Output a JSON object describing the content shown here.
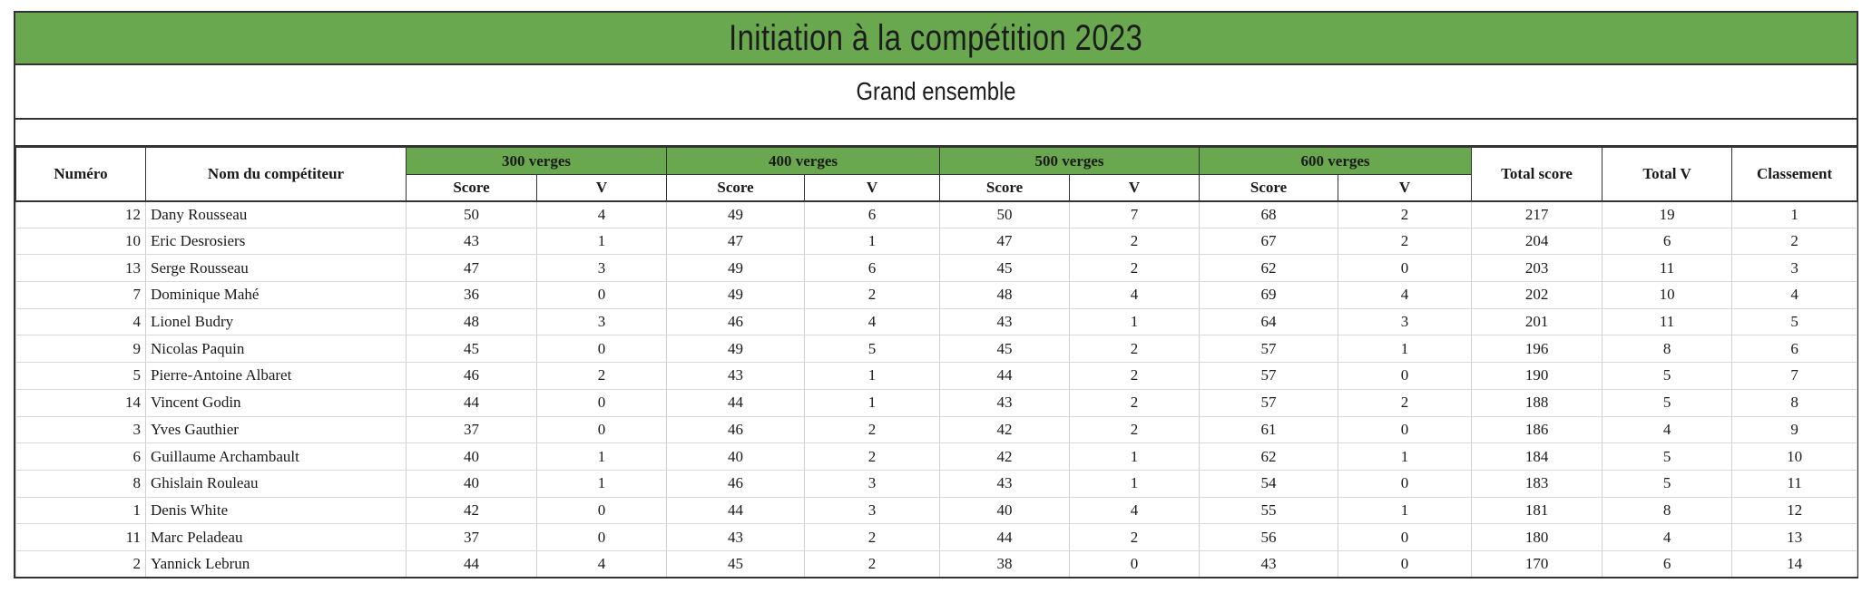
{
  "title": "Initiation à la compétition 2023",
  "subtitle": "Grand ensemble",
  "colors": {
    "header_green": "#6aa84f",
    "border": "#333333"
  },
  "headers": {
    "numero": "Numéro",
    "nom": "Nom du compétiteur",
    "groups": [
      "300 verges",
      "400 verges",
      "500 verges",
      "600 verges"
    ],
    "score": "Score",
    "v": "V",
    "total_score": "Total score",
    "total_v": "Total V",
    "classement": "Classement"
  },
  "rows": [
    {
      "numero": "12",
      "nom": "Dany Rousseau",
      "s300": "50",
      "v300": "4",
      "s400": "49",
      "v400": "6",
      "s500": "50",
      "v500": "7",
      "s600": "68",
      "v600": "2",
      "total_score": "217",
      "total_v": "19",
      "classement": "1"
    },
    {
      "numero": "10",
      "nom": "Eric Desrosiers",
      "s300": "43",
      "v300": "1",
      "s400": "47",
      "v400": "1",
      "s500": "47",
      "v500": "2",
      "s600": "67",
      "v600": "2",
      "total_score": "204",
      "total_v": "6",
      "classement": "2"
    },
    {
      "numero": "13",
      "nom": "Serge Rousseau",
      "s300": "47",
      "v300": "3",
      "s400": "49",
      "v400": "6",
      "s500": "45",
      "v500": "2",
      "s600": "62",
      "v600": "0",
      "total_score": "203",
      "total_v": "11",
      "classement": "3"
    },
    {
      "numero": "7",
      "nom": "Dominique Mahé",
      "s300": "36",
      "v300": "0",
      "s400": "49",
      "v400": "2",
      "s500": "48",
      "v500": "4",
      "s600": "69",
      "v600": "4",
      "total_score": "202",
      "total_v": "10",
      "classement": "4"
    },
    {
      "numero": "4",
      "nom": "Lionel Budry",
      "s300": "48",
      "v300": "3",
      "s400": "46",
      "v400": "4",
      "s500": "43",
      "v500": "1",
      "s600": "64",
      "v600": "3",
      "total_score": "201",
      "total_v": "11",
      "classement": "5"
    },
    {
      "numero": "9",
      "nom": "Nicolas Paquin",
      "s300": "45",
      "v300": "0",
      "s400": "49",
      "v400": "5",
      "s500": "45",
      "v500": "2",
      "s600": "57",
      "v600": "1",
      "total_score": "196",
      "total_v": "8",
      "classement": "6"
    },
    {
      "numero": "5",
      "nom": "Pierre-Antoine Albaret",
      "s300": "46",
      "v300": "2",
      "s400": "43",
      "v400": "1",
      "s500": "44",
      "v500": "2",
      "s600": "57",
      "v600": "0",
      "total_score": "190",
      "total_v": "5",
      "classement": "7"
    },
    {
      "numero": "14",
      "nom": "Vincent Godin",
      "s300": "44",
      "v300": "0",
      "s400": "44",
      "v400": "1",
      "s500": "43",
      "v500": "2",
      "s600": "57",
      "v600": "2",
      "total_score": "188",
      "total_v": "5",
      "classement": "8"
    },
    {
      "numero": "3",
      "nom": "Yves Gauthier",
      "s300": "37",
      "v300": "0",
      "s400": "46",
      "v400": "2",
      "s500": "42",
      "v500": "2",
      "s600": "61",
      "v600": "0",
      "total_score": "186",
      "total_v": "4",
      "classement": "9"
    },
    {
      "numero": "6",
      "nom": "Guillaume Archambault",
      "s300": "40",
      "v300": "1",
      "s400": "40",
      "v400": "2",
      "s500": "42",
      "v500": "1",
      "s600": "62",
      "v600": "1",
      "total_score": "184",
      "total_v": "5",
      "classement": "10"
    },
    {
      "numero": "8",
      "nom": "Ghislain Rouleau",
      "s300": "40",
      "v300": "1",
      "s400": "46",
      "v400": "3",
      "s500": "43",
      "v500": "1",
      "s600": "54",
      "v600": "0",
      "total_score": "183",
      "total_v": "5",
      "classement": "11"
    },
    {
      "numero": "1",
      "nom": "Denis White",
      "s300": "42",
      "v300": "0",
      "s400": "44",
      "v400": "3",
      "s500": "40",
      "v500": "4",
      "s600": "55",
      "v600": "1",
      "total_score": "181",
      "total_v": "8",
      "classement": "12"
    },
    {
      "numero": "11",
      "nom": "Marc Peladeau",
      "s300": "37",
      "v300": "0",
      "s400": "43",
      "v400": "2",
      "s500": "44",
      "v500": "2",
      "s600": "56",
      "v600": "0",
      "total_score": "180",
      "total_v": "4",
      "classement": "13"
    },
    {
      "numero": "2",
      "nom": "Yannick Lebrun",
      "s300": "44",
      "v300": "4",
      "s400": "45",
      "v400": "2",
      "s500": "38",
      "v500": "0",
      "s600": "43",
      "v600": "0",
      "total_score": "170",
      "total_v": "6",
      "classement": "14"
    }
  ]
}
